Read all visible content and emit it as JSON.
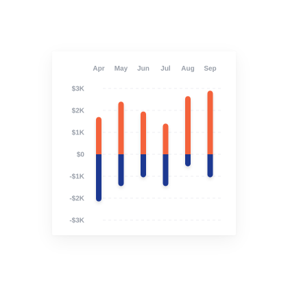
{
  "chart_data": {
    "type": "bar",
    "stacked": "diverging",
    "categories": [
      "Apr",
      "May",
      "Jun",
      "Jul",
      "Aug",
      "Sep"
    ],
    "series": [
      {
        "values": [
          1700,
          2400,
          1950,
          1400,
          2650,
          2900
        ],
        "color": "#F4623A"
      },
      {
        "values": [
          -2150,
          -1450,
          -1050,
          -1450,
          -550,
          -1050
        ],
        "color": "#1E3791"
      }
    ],
    "y_ticks": [
      3000,
      2000,
      1000,
      0,
      -1000,
      -2000,
      -3000
    ],
    "y_tick_labels": [
      "$3K",
      "$2K",
      "$1K",
      "$0",
      "-$1K",
      "-$2K",
      "-$3K"
    ],
    "ylim": [
      -3000,
      3000
    ],
    "x_axis_position": "top",
    "grid": true,
    "legend": "none",
    "title": "",
    "xlabel": "",
    "ylabel": ""
  }
}
